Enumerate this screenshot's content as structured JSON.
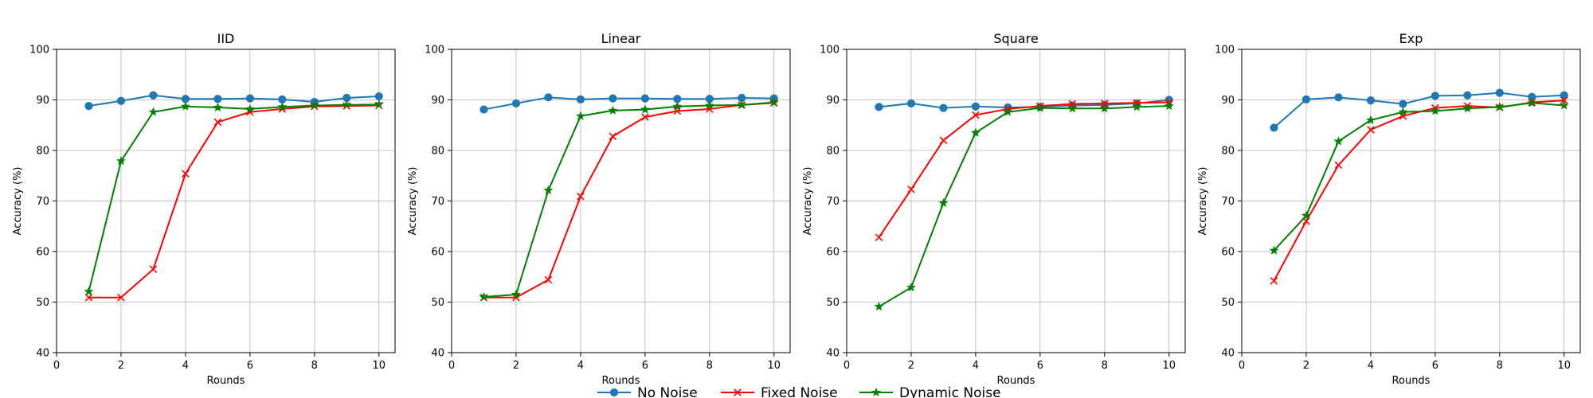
{
  "chart_data": [
    {
      "type": "line",
      "title": "IID",
      "xlabel": "Rounds",
      "ylabel": "Accuracy (%)",
      "xlim": [
        0,
        10.5
      ],
      "ylim": [
        40,
        100
      ],
      "xticks": [
        0,
        2,
        4,
        6,
        8,
        10
      ],
      "yticks": [
        40,
        50,
        60,
        70,
        80,
        90,
        100
      ],
      "grid": true,
      "x": [
        1,
        2,
        3,
        4,
        5,
        6,
        7,
        8,
        9,
        10
      ],
      "series": [
        {
          "name": "No Noise",
          "values": [
            88.8,
            89.8,
            90.9,
            90.2,
            90.2,
            90.3,
            90.1,
            89.6,
            90.4,
            90.7
          ]
        },
        {
          "name": "Fixed Noise",
          "values": [
            50.9,
            50.9,
            56.5,
            75.4,
            85.6,
            87.6,
            88.2,
            88.7,
            88.8,
            88.9
          ]
        },
        {
          "name": "Dynamic Noise",
          "values": [
            52.1,
            77.9,
            87.6,
            88.7,
            88.5,
            88.2,
            88.6,
            88.9,
            89.0,
            89.1
          ]
        }
      ]
    },
    {
      "type": "line",
      "title": "Linear",
      "xlabel": "Rounds",
      "ylabel": "Accuracy (%)",
      "xlim": [
        0,
        10.5
      ],
      "ylim": [
        40,
        100
      ],
      "xticks": [
        0,
        2,
        4,
        6,
        8,
        10
      ],
      "yticks": [
        40,
        50,
        60,
        70,
        80,
        90,
        100
      ],
      "grid": true,
      "x": [
        1,
        2,
        3,
        4,
        5,
        6,
        7,
        8,
        9,
        10
      ],
      "series": [
        {
          "name": "No Noise",
          "values": [
            88.1,
            89.3,
            90.5,
            90.1,
            90.3,
            90.3,
            90.2,
            90.2,
            90.4,
            90.3
          ]
        },
        {
          "name": "Fixed Noise",
          "values": [
            50.9,
            50.9,
            54.4,
            70.9,
            82.8,
            86.6,
            87.8,
            88.2,
            89.0,
            89.4
          ]
        },
        {
          "name": "Dynamic Noise",
          "values": [
            51.0,
            51.5,
            72.1,
            86.8,
            87.9,
            88.1,
            88.7,
            88.9,
            89.0,
            89.5
          ]
        }
      ]
    },
    {
      "type": "line",
      "title": "Square",
      "xlabel": "Rounds",
      "ylabel": "Accuracy (%)",
      "xlim": [
        0,
        10.5
      ],
      "ylim": [
        40,
        100
      ],
      "xticks": [
        0,
        2,
        4,
        6,
        8,
        10
      ],
      "yticks": [
        40,
        50,
        60,
        70,
        80,
        90,
        100
      ],
      "grid": true,
      "x": [
        1,
        2,
        3,
        4,
        5,
        6,
        7,
        8,
        9,
        10
      ],
      "series": [
        {
          "name": "No Noise",
          "values": [
            88.6,
            89.3,
            88.4,
            88.7,
            88.5,
            88.6,
            88.9,
            89.0,
            89.3,
            90.0
          ]
        },
        {
          "name": "Fixed Noise",
          "values": [
            62.8,
            72.3,
            82.0,
            87.0,
            88.2,
            88.8,
            89.2,
            89.3,
            89.4,
            89.5
          ]
        },
        {
          "name": "Dynamic Noise",
          "values": [
            49.1,
            52.9,
            69.6,
            83.5,
            87.6,
            88.4,
            88.3,
            88.3,
            88.6,
            88.8
          ]
        }
      ]
    },
    {
      "type": "line",
      "title": "Exp",
      "xlabel": "Rounds",
      "ylabel": "Accuracy (%)",
      "xlim": [
        0,
        10.5
      ],
      "ylim": [
        40,
        100
      ],
      "xticks": [
        0,
        2,
        4,
        6,
        8,
        10
      ],
      "yticks": [
        40,
        50,
        60,
        70,
        80,
        90,
        100
      ],
      "grid": true,
      "x": [
        1,
        2,
        3,
        4,
        5,
        6,
        7,
        8,
        9,
        10
      ],
      "series": [
        {
          "name": "No Noise",
          "values": [
            84.5,
            90.1,
            90.5,
            89.9,
            89.2,
            90.8,
            90.9,
            91.4,
            90.6,
            90.9
          ]
        },
        {
          "name": "Fixed Noise",
          "values": [
            54.2,
            66.0,
            77.1,
            84.1,
            86.8,
            88.4,
            88.8,
            88.5,
            89.5,
            89.9
          ]
        },
        {
          "name": "Dynamic Noise",
          "values": [
            60.2,
            67.1,
            81.8,
            86.0,
            87.6,
            87.8,
            88.3,
            88.6,
            89.4,
            88.9
          ]
        }
      ]
    }
  ],
  "legend": {
    "placement": "bottom-center",
    "items": [
      {
        "name": "No Noise",
        "color": "#1f77b4",
        "marker": "circle"
      },
      {
        "name": "Fixed Noise",
        "color": "#ff0000",
        "marker": "x"
      },
      {
        "name": "Dynamic Noise",
        "color": "#008000",
        "marker": "star"
      }
    ]
  }
}
